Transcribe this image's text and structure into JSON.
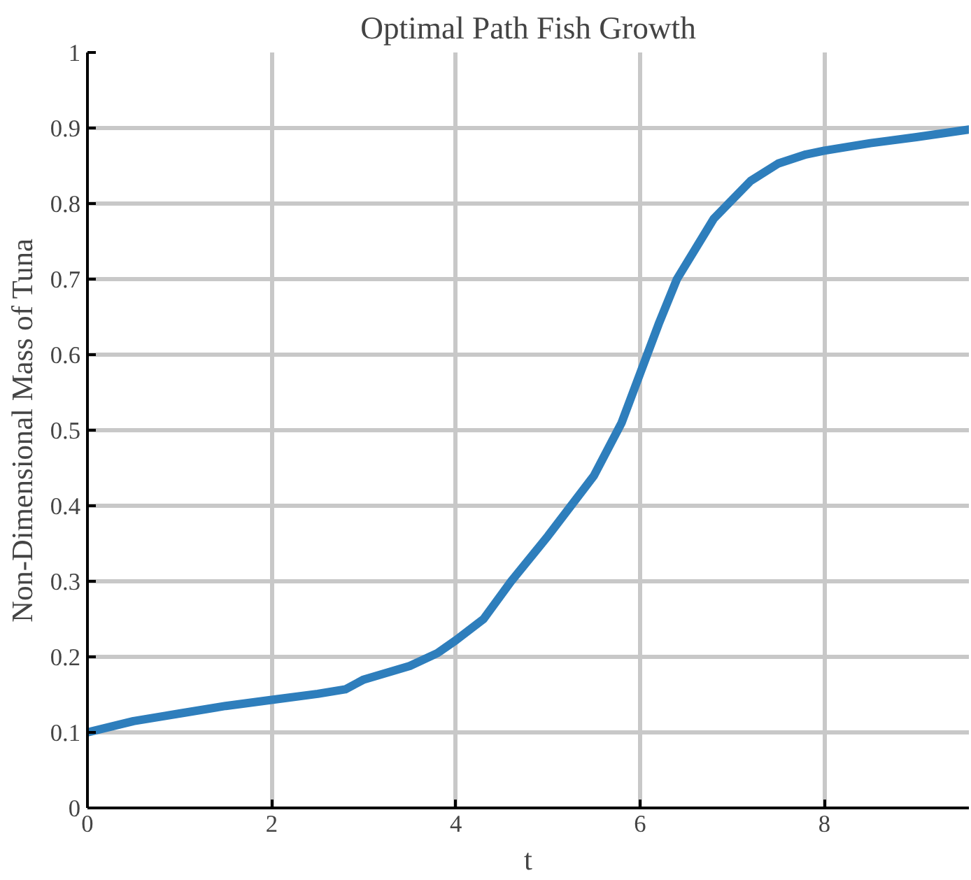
{
  "chart_data": {
    "type": "line",
    "title": "Optimal Path Fish Growth",
    "xlabel": "t",
    "ylabel": "Non-Dimensional Mass of Tuna",
    "xlim": [
      0,
      9.57
    ],
    "ylim": [
      0,
      1
    ],
    "xticks": [
      0,
      2,
      4,
      6,
      8
    ],
    "yticks": [
      0,
      0.1,
      0.2,
      0.3,
      0.4,
      0.5,
      0.6,
      0.7,
      0.8,
      0.9,
      1
    ],
    "grid": true,
    "series": [
      {
        "color": "#2e7ebc",
        "x": [
          0,
          0.5,
          1,
          1.5,
          2,
          2.5,
          2.8,
          3,
          3.5,
          3.8,
          4,
          4.3,
          4.6,
          5,
          5.5,
          5.8,
          6,
          6.2,
          6.4,
          6.6,
          6.8,
          7,
          7.2,
          7.5,
          7.8,
          8,
          8.5,
          9,
          9.57
        ],
        "values": [
          0.1,
          0.115,
          0.125,
          0.135,
          0.143,
          0.151,
          0.157,
          0.17,
          0.188,
          0.205,
          0.222,
          0.25,
          0.3,
          0.36,
          0.44,
          0.51,
          0.575,
          0.64,
          0.7,
          0.74,
          0.78,
          0.805,
          0.83,
          0.853,
          0.865,
          0.87,
          0.88,
          0.888,
          0.898
        ]
      }
    ]
  }
}
